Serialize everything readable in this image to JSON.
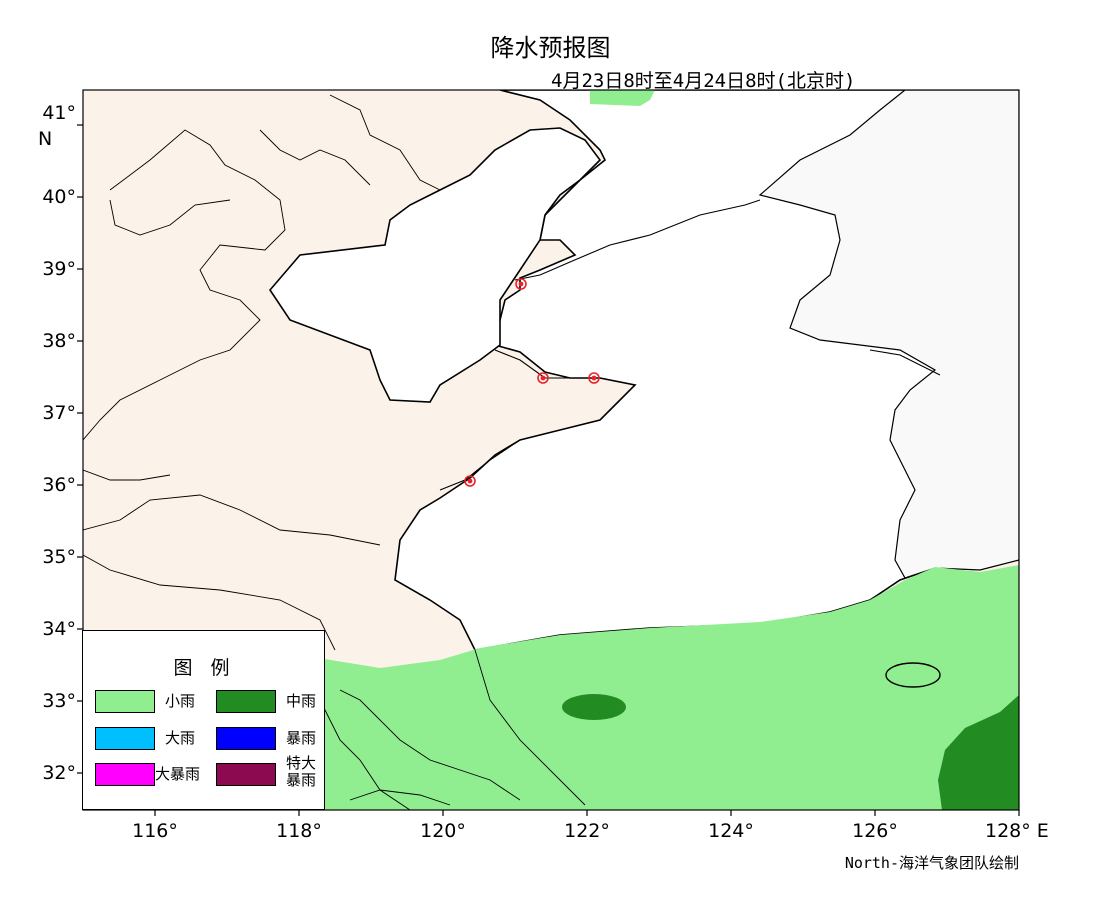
{
  "title": "降水预报图",
  "subtitle": "4月23日8时至4月24日8时(北京时)",
  "credit": "North-海洋气象团队绘制",
  "axes": {
    "lat_ticks": [
      "41°",
      "40°",
      "39°",
      "38°",
      "37°",
      "36°",
      "35°",
      "34°",
      "33°",
      "32°"
    ],
    "lat_unit": "N",
    "lon_ticks": [
      "116°",
      "118°",
      "120°",
      "122°",
      "124°",
      "126°",
      "128° E"
    ]
  },
  "legend": {
    "title": "图  例",
    "items": [
      {
        "label": "小雨",
        "color": "#90ee90"
      },
      {
        "label": "中雨",
        "color": "#228b22"
      },
      {
        "label": "大雨",
        "color": "#00bfff"
      },
      {
        "label": "暴雨",
        "color": "#0000ff"
      },
      {
        "label": "大暴雨",
        "color": "#ff00ff"
      },
      {
        "label": "特大暴雨",
        "color": "#8b0a50"
      }
    ]
  },
  "colors": {
    "land": "#fbf3ea",
    "sea": "#ffffff",
    "foreign_land": "#f9f9f9",
    "light_rain": "#90ee90",
    "moderate_rain": "#228b22",
    "station_marker": "#e8232b"
  }
}
